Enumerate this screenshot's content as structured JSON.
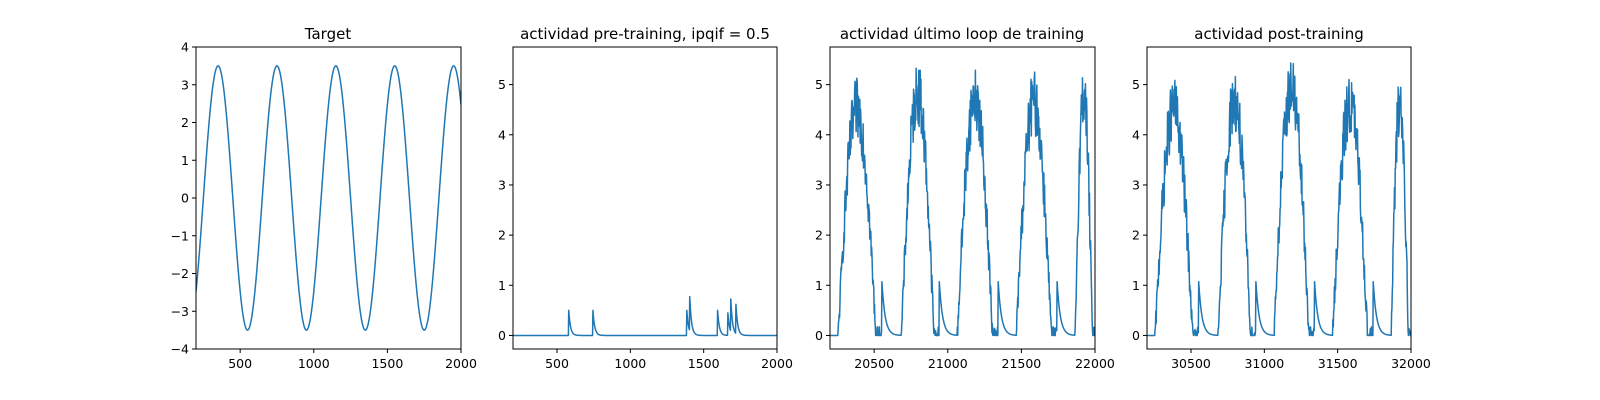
{
  "figure": {
    "background": "#ffffff",
    "line_color": "#1f77b4"
  },
  "chart_data": [
    {
      "type": "line",
      "title": "Target",
      "xlabel": "",
      "ylabel": "",
      "xlim": [
        200,
        2000
      ],
      "ylim": [
        -4,
        4
      ],
      "xticks": [
        500,
        1000,
        1500,
        2000
      ],
      "yticks": [
        -4,
        -3,
        -2,
        -1,
        0,
        1,
        2,
        3,
        4
      ],
      "grid": false,
      "signal": {
        "kind": "sine",
        "amplitude": 3.5,
        "period": 400,
        "peak_x": [
          350,
          750,
          1150,
          1550,
          1950
        ],
        "trough_x": [
          550,
          950,
          1350,
          1750
        ]
      },
      "series": [
        {
          "color": "#1f77b4",
          "x": [],
          "y": []
        }
      ]
    },
    {
      "type": "line",
      "title": "actividad pre-training, ipqif = 0.5",
      "xlabel": "",
      "ylabel": "",
      "xlim": [
        200,
        2000
      ],
      "ylim": [
        -0.27,
        5.75
      ],
      "xticks": [
        500,
        1000,
        1500,
        2000
      ],
      "yticks": [
        0,
        1,
        2,
        3,
        4,
        5
      ],
      "grid": false,
      "signal": {
        "kind": "sparse_spikes",
        "baseline": 0,
        "spikes": [
          [
            580,
            0.5
          ],
          [
            745,
            0.5
          ],
          [
            1385,
            0.5
          ],
          [
            1405,
            0.68
          ],
          [
            1595,
            0.5
          ],
          [
            1665,
            0.45
          ],
          [
            1685,
            0.64
          ],
          [
            1720,
            0.58
          ]
        ]
      },
      "series": [
        {
          "color": "#1f77b4",
          "x": [],
          "y": []
        }
      ]
    },
    {
      "type": "line",
      "title": "actividad último loop de training",
      "xlabel": "",
      "ylabel": "",
      "xlim": [
        20200,
        22000
      ],
      "ylim": [
        -0.27,
        5.75
      ],
      "xticks": [
        20500,
        21000,
        21500,
        22000
      ],
      "yticks": [
        0,
        1,
        2,
        3,
        4,
        5
      ],
      "grid": false,
      "signal": {
        "kind": "noisy_bursts",
        "baseline": 0,
        "bursts": [
          [
            20255,
            20550,
            4.9
          ],
          [
            20685,
            20940,
            5.25
          ],
          [
            21065,
            21340,
            5.15
          ],
          [
            21465,
            21740,
            5.05
          ],
          [
            21865,
            22000,
            5.25
          ]
        ]
      },
      "series": [
        {
          "color": "#1f77b4",
          "x": [],
          "y": []
        }
      ]
    },
    {
      "type": "line",
      "title": "actividad post-training",
      "xlabel": "",
      "ylabel": "",
      "xlim": [
        30200,
        32000
      ],
      "ylim": [
        -0.27,
        5.75
      ],
      "xticks": [
        30500,
        31000,
        31500,
        32000
      ],
      "yticks": [
        0,
        1,
        2,
        3,
        4,
        5
      ],
      "grid": false,
      "signal": {
        "kind": "noisy_bursts",
        "baseline": 0,
        "bursts": [
          [
            30255,
            30550,
            4.9
          ],
          [
            30685,
            30940,
            5.1
          ],
          [
            31065,
            31340,
            5.35
          ],
          [
            31465,
            31740,
            5.0
          ],
          [
            31865,
            32000,
            5.05
          ]
        ]
      },
      "series": [
        {
          "color": "#1f77b4",
          "x": [],
          "y": []
        }
      ]
    }
  ]
}
